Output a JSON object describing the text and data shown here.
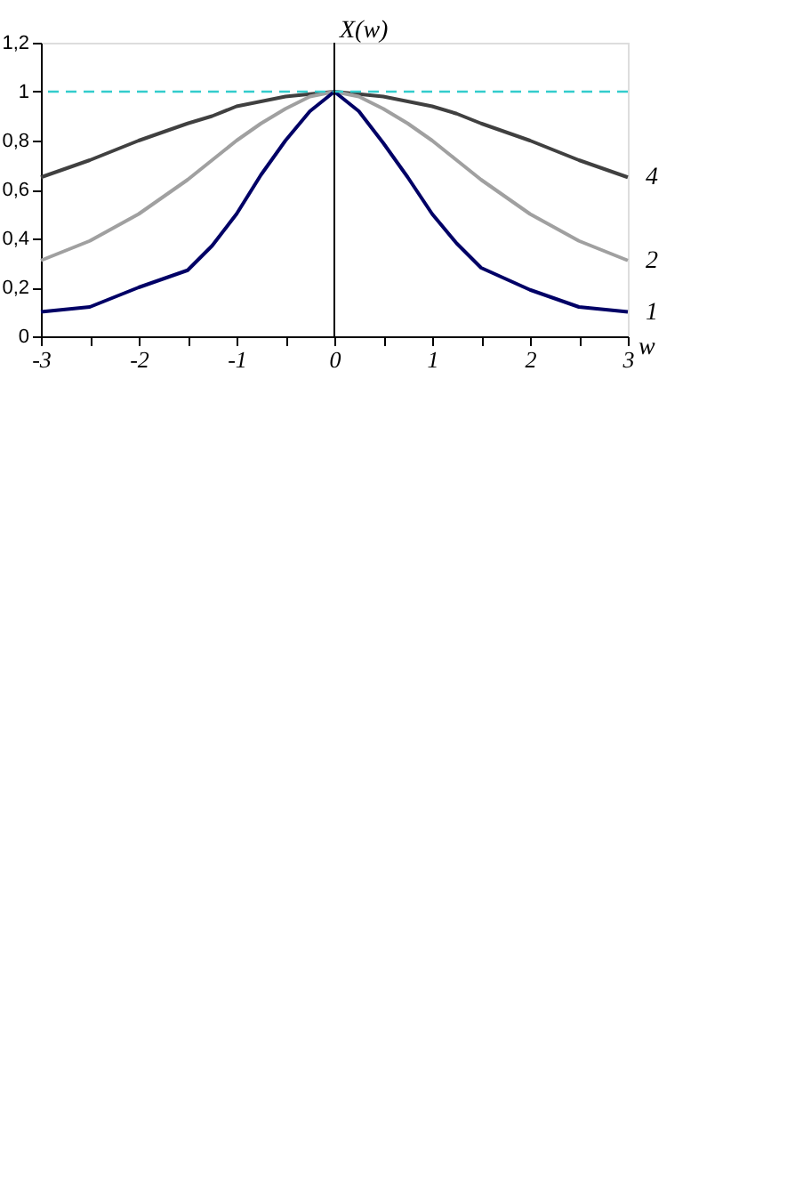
{
  "chart_data": {
    "type": "line",
    "xlabel": "w",
    "ylabel": "X(w)",
    "x": [
      -3,
      -2.5,
      -2,
      -1.5,
      -1.25,
      -1,
      -0.75,
      -0.5,
      -0.25,
      0,
      0.25,
      0.5,
      0.75,
      1,
      1.25,
      1.5,
      2,
      2.5,
      3
    ],
    "series": [
      {
        "name": "4",
        "color": "#404040",
        "values": [
          0.65,
          0.72,
          0.8,
          0.87,
          0.9,
          0.94,
          0.96,
          0.98,
          0.99,
          1.0,
          0.99,
          0.98,
          0.96,
          0.94,
          0.91,
          0.87,
          0.8,
          0.72,
          0.65
        ]
      },
      {
        "name": "2",
        "color": "#a0a0a0",
        "values": [
          0.31,
          0.39,
          0.5,
          0.64,
          0.72,
          0.8,
          0.87,
          0.93,
          0.98,
          1.0,
          0.98,
          0.93,
          0.87,
          0.8,
          0.72,
          0.64,
          0.5,
          0.39,
          0.31
        ]
      },
      {
        "name": "1",
        "color": "#000066",
        "values": [
          0.1,
          0.12,
          0.2,
          0.27,
          0.37,
          0.5,
          0.66,
          0.8,
          0.92,
          1.0,
          0.92,
          0.79,
          0.65,
          0.5,
          0.38,
          0.28,
          0.19,
          0.12,
          0.1
        ]
      }
    ],
    "xlim": [
      -3,
      3
    ],
    "ylim": [
      0,
      1.2
    ],
    "xticks": [
      -3,
      {
        "value": -2.5,
        "label": null
      },
      -2,
      {
        "value": -1.5,
        "label": null
      },
      -1,
      {
        "value": -0.5,
        "label": null
      },
      0,
      {
        "value": 0.5,
        "label": null
      },
      1,
      {
        "value": 1.5,
        "label": null
      },
      2,
      {
        "value": 2.5,
        "label": null
      },
      3
    ],
    "yticks": [
      0,
      {
        "value": 0.2,
        "label": "0,2"
      },
      {
        "value": 0.4,
        "label": "0,4"
      },
      {
        "value": 0.6,
        "label": "0,6"
      },
      {
        "value": 0.8,
        "label": "0,8"
      },
      1,
      {
        "value": 1.2,
        "label": "1,2"
      }
    ],
    "ref_lines": [
      {
        "axis": "y",
        "value": 1,
        "color": "#33cccc",
        "line_style": "dashed"
      }
    ],
    "grid": false,
    "marker": "none",
    "line_style": "solid"
  }
}
